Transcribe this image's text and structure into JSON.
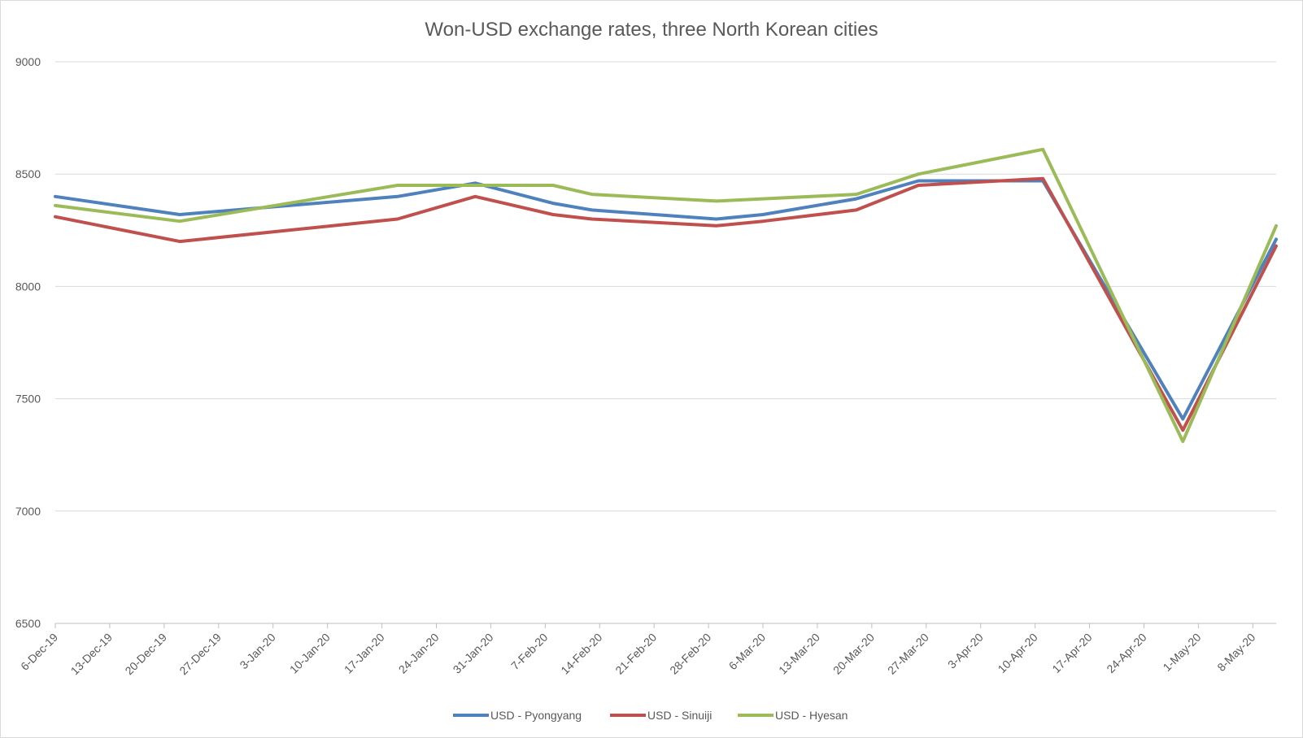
{
  "chart_data": {
    "type": "line",
    "title": "Won-USD exchange rates, three North Korean cities",
    "xlabel": "",
    "ylabel": "",
    "x_range": [
      "2019-12-06",
      "2020-05-11"
    ],
    "ylim": [
      6500,
      9000
    ],
    "y_ticks": [
      6500,
      7000,
      7500,
      8000,
      8500,
      9000
    ],
    "x_tick_labels": [
      "6-Dec-19",
      "13-Dec-19",
      "20-Dec-19",
      "27-Dec-19",
      "3-Jan-20",
      "10-Jan-20",
      "17-Jan-20",
      "24-Jan-20",
      "31-Jan-20",
      "7-Feb-20",
      "14-Feb-20",
      "21-Feb-20",
      "28-Feb-20",
      "6-Mar-20",
      "13-Mar-20",
      "20-Mar-20",
      "27-Mar-20",
      "3-Apr-20",
      "10-Apr-20",
      "17-Apr-20",
      "24-Apr-20",
      "1-May-20",
      "8-May-20"
    ],
    "x_tick_dates": [
      "2019-12-06",
      "2019-12-13",
      "2019-12-20",
      "2019-12-27",
      "2020-01-03",
      "2020-01-10",
      "2020-01-17",
      "2020-01-24",
      "2020-01-31",
      "2020-02-07",
      "2020-02-14",
      "2020-02-21",
      "2020-02-28",
      "2020-03-06",
      "2020-03-13",
      "2020-03-20",
      "2020-03-27",
      "2020-04-03",
      "2020-04-10",
      "2020-04-17",
      "2020-04-24",
      "2020-05-01",
      "2020-05-08"
    ],
    "grid": true,
    "legend_position": "bottom",
    "x": [
      "2019-12-06",
      "2019-12-22",
      "2020-01-19",
      "2020-01-29",
      "2020-02-08",
      "2020-02-13",
      "2020-02-29",
      "2020-03-06",
      "2020-03-18",
      "2020-03-26",
      "2020-04-11",
      "2020-04-29",
      "2020-05-11"
    ],
    "series": [
      {
        "name": "USD - Pyongyang",
        "color": "#4f81bd",
        "values": [
          8400,
          8320,
          8400,
          8460,
          8370,
          8340,
          8300,
          8320,
          8390,
          8470,
          8470,
          7410,
          8210
        ]
      },
      {
        "name": "USD - Sinuiji",
        "color": "#c0504d",
        "values": [
          8310,
          8200,
          8300,
          8400,
          8320,
          8300,
          8270,
          8290,
          8340,
          8450,
          8480,
          7360,
          8180
        ]
      },
      {
        "name": "USD - Hyesan",
        "color": "#9bbb59",
        "values": [
          8360,
          8290,
          8450,
          8450,
          8450,
          8410,
          8380,
          8390,
          8410,
          8500,
          8610,
          7310,
          8270
        ]
      }
    ]
  }
}
